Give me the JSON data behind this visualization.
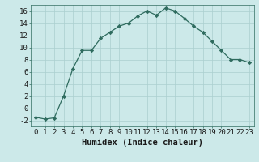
{
  "x": [
    0,
    1,
    2,
    3,
    4,
    5,
    6,
    7,
    8,
    9,
    10,
    11,
    12,
    13,
    14,
    15,
    16,
    17,
    18,
    19,
    20,
    21,
    22,
    23
  ],
  "y": [
    -1.5,
    -1.8,
    -1.6,
    2.0,
    6.5,
    9.5,
    9.5,
    11.5,
    12.5,
    13.5,
    14.0,
    15.2,
    16.0,
    15.3,
    16.5,
    16.0,
    14.8,
    13.5,
    12.5,
    11.0,
    9.5,
    8.0,
    8.0,
    7.5
  ],
  "line_color": "#2e6b5e",
  "marker": "D",
  "marker_size": 2.2,
  "bg_color": "#cce9e9",
  "grid_color": "#aacfcf",
  "xlabel": "Humidex (Indice chaleur)",
  "xlim": [
    -0.5,
    23.5
  ],
  "ylim": [
    -3,
    17
  ],
  "yticks": [
    -2,
    0,
    2,
    4,
    6,
    8,
    10,
    12,
    14,
    16
  ],
  "xticks": [
    0,
    1,
    2,
    3,
    4,
    5,
    6,
    7,
    8,
    9,
    10,
    11,
    12,
    13,
    14,
    15,
    16,
    17,
    18,
    19,
    20,
    21,
    22,
    23
  ],
  "tick_fontsize": 6.5,
  "xlabel_fontsize": 7.5,
  "linewidth": 0.9
}
